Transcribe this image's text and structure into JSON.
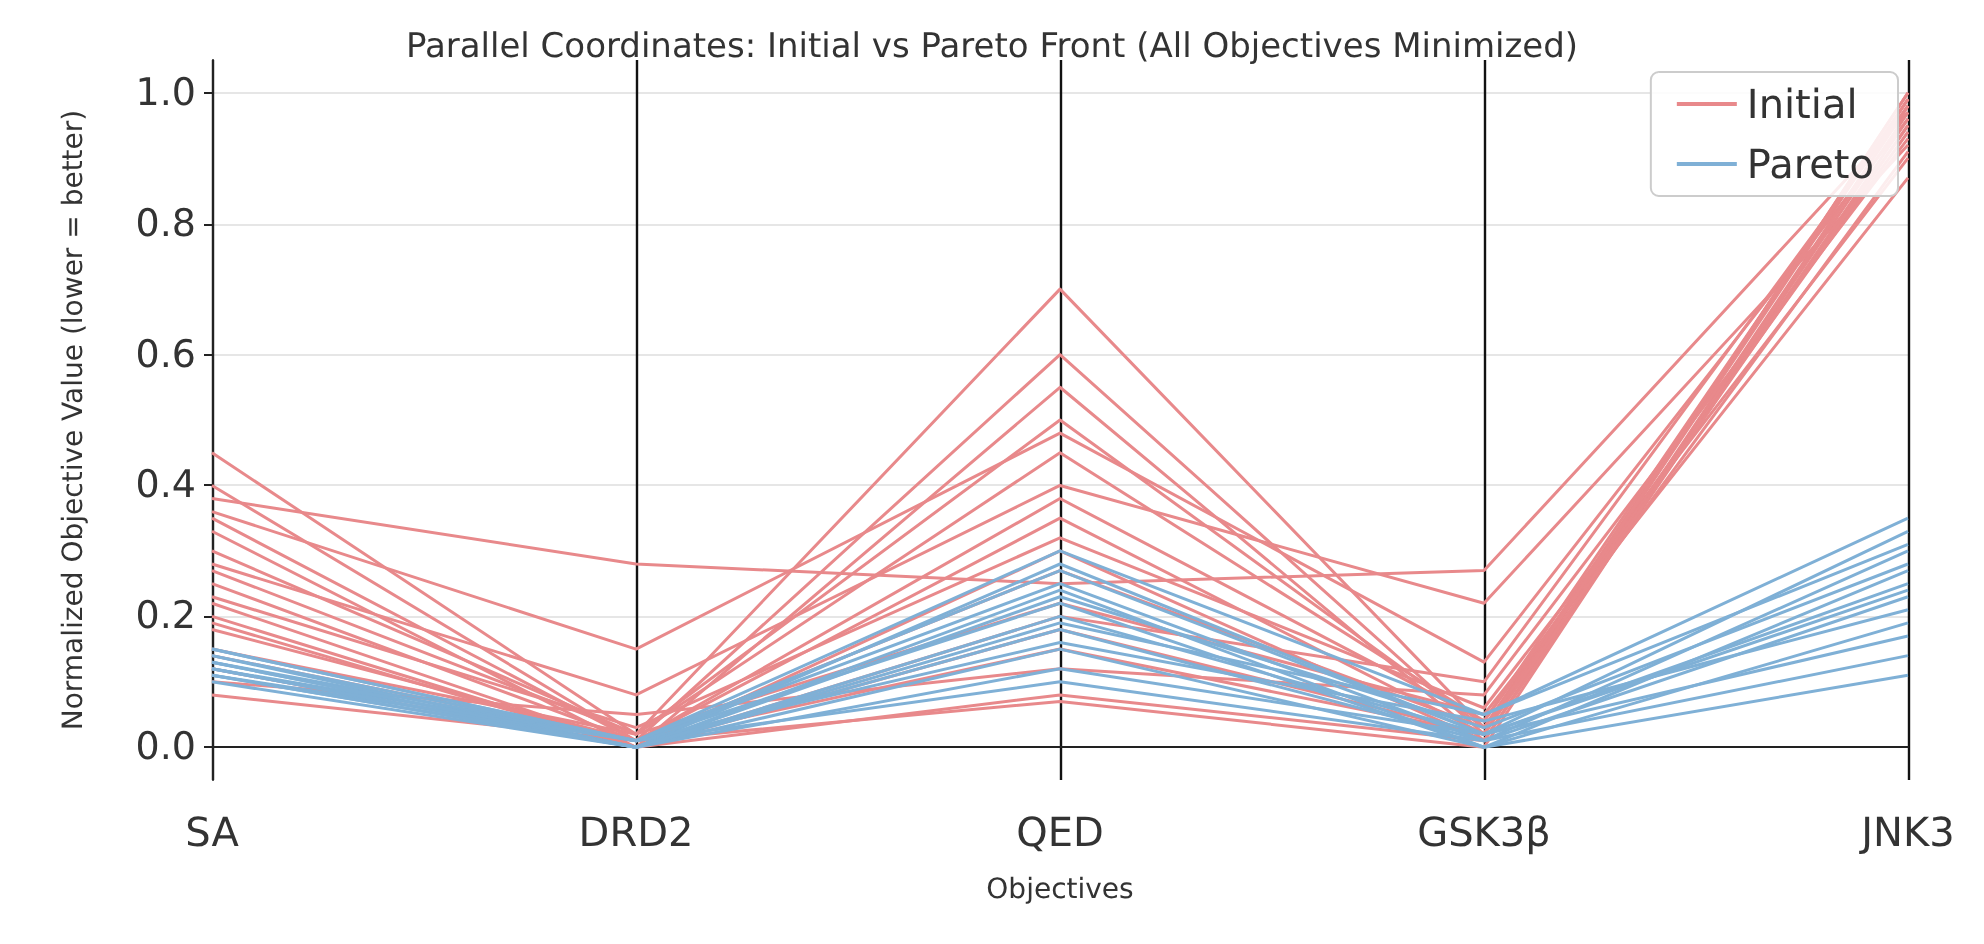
{
  "chart_data": {
    "type": "line",
    "title": "Parallel Coordinates: Initial vs Pareto Front (All Objectives Minimized)",
    "xlabel": "Objectives",
    "ylabel": "Normalized Objective Value (lower = better)",
    "categories": [
      "SA",
      "DRD2",
      "QED",
      "GSK3β",
      "JNK3"
    ],
    "ylim": [
      -0.05,
      1.05
    ],
    "yticks": [
      {
        "value": 0,
        "label": "0.0"
      },
      {
        "value": 0.2,
        "label": "0.2"
      },
      {
        "value": 0.4,
        "label": "0.4"
      },
      {
        "value": 0.6,
        "label": "0.6"
      },
      {
        "value": 0.8,
        "label": "0.8"
      },
      {
        "value": 1,
        "label": "1.0"
      }
    ],
    "grid": true,
    "legend": "top right",
    "series": [
      {
        "name": "Initial",
        "color": "#e8898b",
        "values": [
          0.45,
          0.02,
          0.7,
          0.03,
          0.99
        ]
      },
      {
        "color": "#e8898b",
        "values": [
          0.38,
          0.28,
          0.25,
          0.27,
          0.97
        ]
      },
      {
        "color": "#e8898b",
        "values": [
          0.4,
          0.01,
          0.6,
          0.02,
          1.0
        ]
      },
      {
        "color": "#e8898b",
        "values": [
          0.36,
          0.15,
          0.48,
          0.13,
          0.96
        ]
      },
      {
        "color": "#e8898b",
        "values": [
          0.33,
          0.0,
          0.55,
          0.01,
          0.98
        ]
      },
      {
        "color": "#e8898b",
        "values": [
          0.3,
          0.02,
          0.45,
          0.04,
          0.94
        ]
      },
      {
        "color": "#e8898b",
        "values": [
          0.28,
          0.08,
          0.4,
          0.22,
          0.92
        ]
      },
      {
        "color": "#e8898b",
        "values": [
          0.25,
          0.01,
          0.35,
          0.02,
          0.99
        ]
      },
      {
        "color": "#e8898b",
        "values": [
          0.23,
          0.03,
          0.32,
          0.06,
          0.9
        ]
      },
      {
        "color": "#e8898b",
        "values": [
          0.2,
          0.0,
          0.3,
          0.01,
          0.97
        ]
      },
      {
        "color": "#e8898b",
        "values": [
          0.18,
          0.01,
          0.27,
          0.03,
          0.95
        ]
      },
      {
        "color": "#e8898b",
        "values": [
          0.15,
          0.02,
          0.22,
          0.05,
          0.87
        ]
      },
      {
        "color": "#e8898b",
        "values": [
          0.12,
          0.0,
          0.18,
          0.02,
          1.0
        ]
      },
      {
        "color": "#e8898b",
        "values": [
          0.1,
          0.05,
          0.12,
          0.08,
          0.93
        ]
      },
      {
        "color": "#e8898b",
        "values": [
          0.08,
          0.01,
          0.07,
          0.0,
          0.98
        ]
      },
      {
        "color": "#e8898b",
        "values": [
          0.22,
          0.0,
          0.08,
          0.01,
          0.96
        ]
      },
      {
        "color": "#e8898b",
        "values": [
          0.35,
          0.01,
          0.38,
          0.04,
          0.99
        ]
      },
      {
        "color": "#e8898b",
        "values": [
          0.27,
          0.02,
          0.5,
          0.03,
          0.91
        ]
      },
      {
        "color": "#e8898b",
        "values": [
          0.19,
          0.0,
          0.2,
          0.1,
          0.98
        ]
      },
      {
        "color": "#e8898b",
        "values": [
          0.14,
          0.01,
          0.15,
          0.02,
          0.95
        ]
      },
      {
        "name": "Pareto",
        "color": "#7fb0d6",
        "values": [
          0.15,
          0.01,
          0.3,
          0.05,
          0.35
        ]
      },
      {
        "color": "#7fb0d6",
        "values": [
          0.14,
          0.0,
          0.28,
          0.02,
          0.33
        ]
      },
      {
        "color": "#7fb0d6",
        "values": [
          0.13,
          0.01,
          0.25,
          0.01,
          0.3
        ]
      },
      {
        "color": "#7fb0d6",
        "values": [
          0.13,
          0.0,
          0.23,
          0.03,
          0.28
        ]
      },
      {
        "color": "#7fb0d6",
        "values": [
          0.12,
          0.01,
          0.22,
          0.0,
          0.27
        ]
      },
      {
        "color": "#7fb0d6",
        "values": [
          0.12,
          0.0,
          0.2,
          0.02,
          0.25
        ]
      },
      {
        "color": "#7fb0d6",
        "values": [
          0.11,
          0.0,
          0.18,
          0.01,
          0.23
        ]
      },
      {
        "color": "#7fb0d6",
        "values": [
          0.11,
          0.01,
          0.16,
          0.04,
          0.21
        ]
      },
      {
        "color": "#7fb0d6",
        "values": [
          0.1,
          0.0,
          0.15,
          0.0,
          0.19
        ]
      },
      {
        "color": "#7fb0d6",
        "values": [
          0.13,
          0.0,
          0.12,
          0.02,
          0.17
        ]
      },
      {
        "color": "#7fb0d6",
        "values": [
          0.14,
          0.01,
          0.1,
          0.01,
          0.14
        ]
      },
      {
        "color": "#7fb0d6",
        "values": [
          0.12,
          0.0,
          0.24,
          0.0,
          0.11
        ]
      },
      {
        "color": "#7fb0d6",
        "values": [
          0.11,
          0.0,
          0.19,
          0.05,
          0.31
        ]
      },
      {
        "color": "#7fb0d6",
        "values": [
          0.15,
          0.01,
          0.27,
          0.02,
          0.24
        ]
      }
    ]
  }
}
